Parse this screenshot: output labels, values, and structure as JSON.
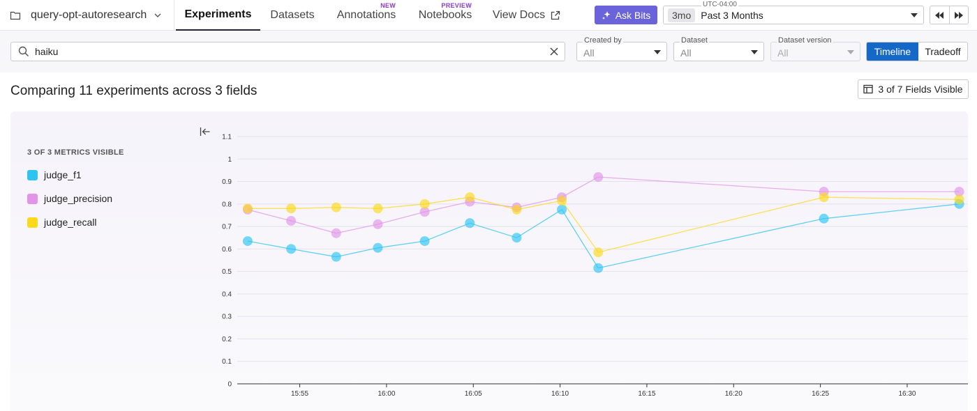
{
  "project": {
    "name": "query-opt-autoresearch"
  },
  "tabs": [
    {
      "label": "Experiments",
      "tag": ""
    },
    {
      "label": "Datasets",
      "tag": ""
    },
    {
      "label": "Annotations",
      "tag": "NEW"
    },
    {
      "label": "Notebooks",
      "tag": "PREVIEW"
    },
    {
      "label": "View Docs",
      "tag": ""
    }
  ],
  "ask_bits": "Ask Bits",
  "time": {
    "timezone": "UTC-04:00",
    "chip": "3mo",
    "label": "Past 3 Months"
  },
  "filters": {
    "search_value": "haiku",
    "created_by": {
      "label": "Created by",
      "value": "All"
    },
    "dataset": {
      "label": "Dataset",
      "value": "All"
    },
    "dataset_version": {
      "label": "Dataset version",
      "value": "All"
    },
    "view_toggle": {
      "timeline": "Timeline",
      "tradeoff": "Tradeoff"
    }
  },
  "heading": "Comparing 11 experiments across 3 fields",
  "fields_button": "3 of 7 Fields Visible",
  "legend": {
    "header": "3 OF 3 METRICS VISIBLE",
    "items": [
      {
        "label": "judge_f1",
        "color": "#2ec4f2"
      },
      {
        "label": "judge_precision",
        "color": "#e294e8"
      },
      {
        "label": "judge_recall",
        "color": "#fcd91a"
      }
    ]
  },
  "chart_data": {
    "type": "line",
    "x_ticks": [
      "15:55",
      "16:00",
      "16:05",
      "16:10",
      "16:15",
      "16:20",
      "16:25",
      "16:30"
    ],
    "y_ticks": [
      "0",
      "0.1",
      "0.2",
      "0.3",
      "0.4",
      "0.5",
      "0.6",
      "0.7",
      "0.8",
      "0.9",
      "1",
      "1.1"
    ],
    "ylim": [
      0,
      1.1
    ],
    "xlim": [
      "15:51:24",
      "16:33:30"
    ],
    "x": [
      "15:52:00",
      "15:54:30",
      "15:57:06",
      "15:59:30",
      "16:02:12",
      "16:04:48",
      "16:07:30",
      "16:10:06",
      "16:12:12",
      "16:25:12",
      "16:33:00"
    ],
    "series": [
      {
        "name": "judge_f1",
        "color": "#2ec4f2",
        "values": [
          0.635,
          0.6,
          0.565,
          0.605,
          0.635,
          0.715,
          0.65,
          0.775,
          0.515,
          0.735,
          0.8
        ]
      },
      {
        "name": "judge_precision",
        "color": "#e294e8",
        "values": [
          0.775,
          0.725,
          0.67,
          0.71,
          0.765,
          0.81,
          0.785,
          0.83,
          0.92,
          0.855,
          0.855
        ]
      },
      {
        "name": "judge_recall",
        "color": "#fcd91a",
        "values": [
          0.78,
          0.78,
          0.785,
          0.78,
          0.8,
          0.83,
          0.775,
          0.815,
          0.585,
          0.83,
          0.82
        ]
      }
    ]
  }
}
